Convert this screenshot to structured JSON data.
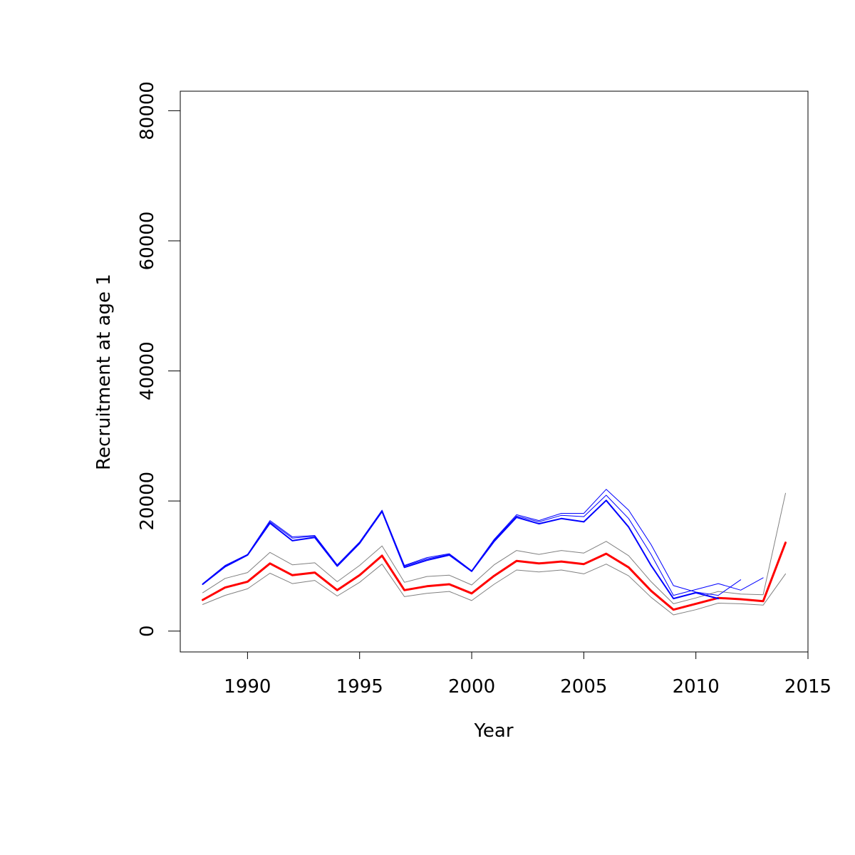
{
  "chart_data": {
    "type": "line",
    "title": "",
    "xlabel": "Year",
    "ylabel": "Recruitment at age 1",
    "xlim": [
      1987,
      2015
    ],
    "ylim": [
      -3200,
      83000
    ],
    "x_ticks": [
      1990,
      1995,
      2000,
      2005,
      2010,
      2015
    ],
    "x_tick_labels": [
      "1990",
      "1995",
      "2000",
      "2005",
      "2010",
      "2015"
    ],
    "y_ticks": [
      0,
      20000,
      40000,
      60000,
      80000
    ],
    "y_tick_labels": [
      "0",
      "20000",
      "40000",
      "60000",
      "80000"
    ],
    "grid": false,
    "legend": "none",
    "series": [
      {
        "color": "#ff0000",
        "width": 3,
        "x": [
          1988,
          1989,
          1990,
          1991,
          1992,
          1993,
          1994,
          1995,
          1996,
          1997,
          1998,
          1999,
          2000,
          2001,
          2002,
          2003,
          2004,
          2005,
          2006,
          2007,
          2008,
          2009,
          2010,
          2011,
          2012,
          2013,
          2014
        ],
        "y": [
          4800,
          6700,
          7600,
          10400,
          8600,
          9000,
          6300,
          8600,
          11600,
          6300,
          6900,
          7200,
          5800,
          8500,
          10800,
          10400,
          10700,
          10300,
          11900,
          9800,
          6200,
          3300,
          4200,
          5100,
          4900,
          4600,
          13600
        ]
      },
      {
        "color": "#808080",
        "width": 1,
        "x": [
          1988,
          1989,
          1990,
          1991,
          1992,
          1993,
          1994,
          1995,
          1996,
          1997,
          1998,
          1999,
          2000,
          2001,
          2002,
          2003,
          2004,
          2005,
          2006,
          2007,
          2008,
          2009,
          2010,
          2011,
          2012,
          2013,
          2014
        ],
        "y": [
          5900,
          8100,
          9000,
          12100,
          10200,
          10500,
          7600,
          10100,
          13100,
          7500,
          8400,
          8600,
          7100,
          10200,
          12400,
          11800,
          12400,
          12000,
          13800,
          11600,
          7600,
          4200,
          5100,
          6100,
          5700,
          5600,
          21200
        ]
      },
      {
        "color": "#808080",
        "width": 1,
        "x": [
          1988,
          1989,
          1990,
          1991,
          1992,
          1993,
          1994,
          1995,
          1996,
          1997,
          1998,
          1999,
          2000,
          2001,
          2002,
          2003,
          2004,
          2005,
          2006,
          2007,
          2008,
          2009,
          2010,
          2011,
          2012,
          2013,
          2014
        ],
        "y": [
          4100,
          5500,
          6500,
          8900,
          7300,
          7800,
          5400,
          7500,
          10300,
          5300,
          5800,
          6100,
          4700,
          7200,
          9400,
          9100,
          9400,
          8800,
          10300,
          8500,
          5200,
          2500,
          3300,
          4300,
          4200,
          4000,
          8800
        ]
      },
      {
        "color": "#0000ff",
        "width": 2,
        "x": [
          1988,
          1989,
          1990,
          1991,
          1992,
          1993,
          1994,
          1995,
          1996,
          1997,
          1998,
          1999,
          2000,
          2001,
          2002,
          2003,
          2004,
          2005,
          2006,
          2007,
          2008,
          2009,
          2010,
          2011
        ],
        "y": [
          7200,
          9900,
          11700,
          16600,
          13900,
          14400,
          10000,
          13500,
          18400,
          9800,
          10900,
          11700,
          9200,
          13800,
          17500,
          16500,
          17300,
          16800,
          20100,
          16000,
          10100,
          5000,
          5900,
          5000
        ]
      },
      {
        "color": "#0000ff",
        "width": 1,
        "x": [
          1988,
          1989,
          1990,
          1991,
          1992,
          1993,
          1994,
          1995,
          1996,
          1997,
          1998,
          1999,
          2000,
          2001,
          2002,
          2003,
          2004,
          2005,
          2006,
          2007,
          2008,
          2009,
          2010,
          2011,
          2012
        ],
        "y": [
          7300,
          10100,
          11800,
          17000,
          14500,
          14700,
          10200,
          13700,
          18600,
          10100,
          11300,
          11900,
          9300,
          14100,
          17900,
          17000,
          18100,
          18100,
          21800,
          18600,
          13300,
          7000,
          6000,
          5500,
          7900
        ]
      },
      {
        "color": "#0000ff",
        "width": 1,
        "x": [
          1988,
          1989,
          1990,
          1991,
          1992,
          1993,
          1994,
          1995,
          1996,
          1997,
          1998,
          1999,
          2000,
          2001,
          2002,
          2003,
          2004,
          2005,
          2006,
          2007,
          2008,
          2009,
          2010,
          2011,
          2012,
          2013
        ],
        "y": [
          7200,
          10000,
          11700,
          16800,
          14300,
          14600,
          10100,
          13600,
          18500,
          10000,
          11100,
          11800,
          9200,
          14000,
          17700,
          16800,
          17800,
          17600,
          20900,
          17300,
          11800,
          5500,
          6400,
          7300,
          6300,
          8200
        ]
      }
    ]
  }
}
